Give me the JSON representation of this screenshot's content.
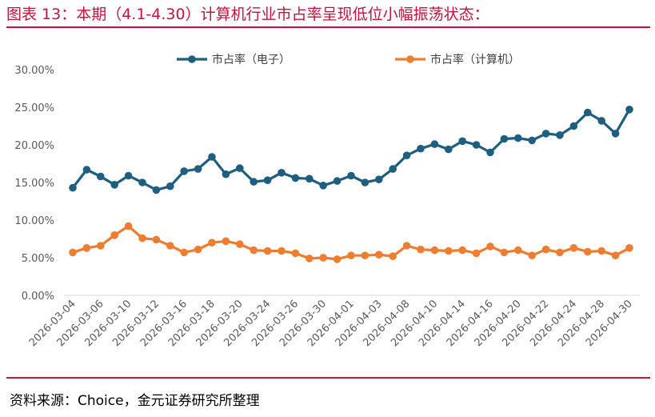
{
  "title": "图表 13：本期（4.1-4.30）计算机行业市占率呈现低位小幅振荡状态：",
  "source": "资料来源：Choice，金元证券研究所整理",
  "chart_data": {
    "type": "line",
    "title": "",
    "xlabel": "",
    "ylabel": "",
    "ylim": [
      0,
      30
    ],
    "y_ticks": [
      "0.00%",
      "5.00%",
      "10.00%",
      "15.00%",
      "20.00%",
      "25.00%",
      "30.00%"
    ],
    "grid": false,
    "legend_position": "top",
    "x": [
      "2026-03-04",
      "2026-03-05",
      "2026-03-06",
      "2026-03-09",
      "2026-03-10",
      "2026-03-11",
      "2026-03-12",
      "2026-03-13",
      "2026-03-16",
      "2026-03-17",
      "2026-03-18",
      "2026-03-19",
      "2026-03-20",
      "2026-03-23",
      "2026-03-24",
      "2026-03-25",
      "2026-03-26",
      "2026-03-27",
      "2026-03-30",
      "2026-03-31",
      "2026-04-01",
      "2026-04-02",
      "2026-04-03",
      "2026-04-07",
      "2026-04-08",
      "2026-04-09",
      "2026-04-10",
      "2026-04-13",
      "2026-04-14",
      "2026-04-15",
      "2026-04-16",
      "2026-04-17",
      "2026-04-20",
      "2026-04-21",
      "2026-04-22",
      "2026-04-23",
      "2026-04-24",
      "2026-04-27",
      "2026-04-28",
      "2026-04-29",
      "2026-04-30"
    ],
    "x_tick_labels": [
      "2026-03-04",
      "2026-03-06",
      "2026-03-10",
      "2026-03-12",
      "2026-03-16",
      "2026-03-18",
      "2026-03-20",
      "2026-03-24",
      "2026-03-26",
      "2026-03-30",
      "2026-04-01",
      "2026-04-03",
      "2026-04-08",
      "2026-04-10",
      "2026-04-14",
      "2026-04-16",
      "2026-04-20",
      "2026-04-22",
      "2026-04-24",
      "2026-04-28",
      "2026-04-30"
    ],
    "series": [
      {
        "name": "市占率（电子）",
        "color": "#1e5e7e",
        "values": [
          14.3,
          16.7,
          15.8,
          14.7,
          15.9,
          15.0,
          14.0,
          14.5,
          16.5,
          16.8,
          18.4,
          16.1,
          16.9,
          15.1,
          15.3,
          16.3,
          15.6,
          15.5,
          14.6,
          15.2,
          15.9,
          15.0,
          15.4,
          16.8,
          18.6,
          19.5,
          20.1,
          19.4,
          20.5,
          20.0,
          19.0,
          20.8,
          20.9,
          20.6,
          21.5,
          21.3,
          22.5,
          24.3,
          23.2,
          21.5,
          24.7
        ]
      },
      {
        "name": "市占率（计算机）",
        "color": "#ed7d31",
        "values": [
          5.7,
          6.3,
          6.6,
          8.0,
          9.2,
          7.6,
          7.4,
          6.6,
          5.7,
          6.1,
          7.0,
          7.2,
          6.8,
          6.0,
          5.9,
          5.9,
          5.6,
          4.9,
          5.0,
          4.8,
          5.3,
          5.3,
          5.4,
          5.2,
          6.6,
          6.1,
          6.0,
          5.9,
          6.0,
          5.6,
          6.5,
          5.7,
          6.0,
          5.3,
          6.1,
          5.7,
          6.3,
          5.8,
          5.9,
          5.3,
          6.3
        ]
      }
    ]
  }
}
